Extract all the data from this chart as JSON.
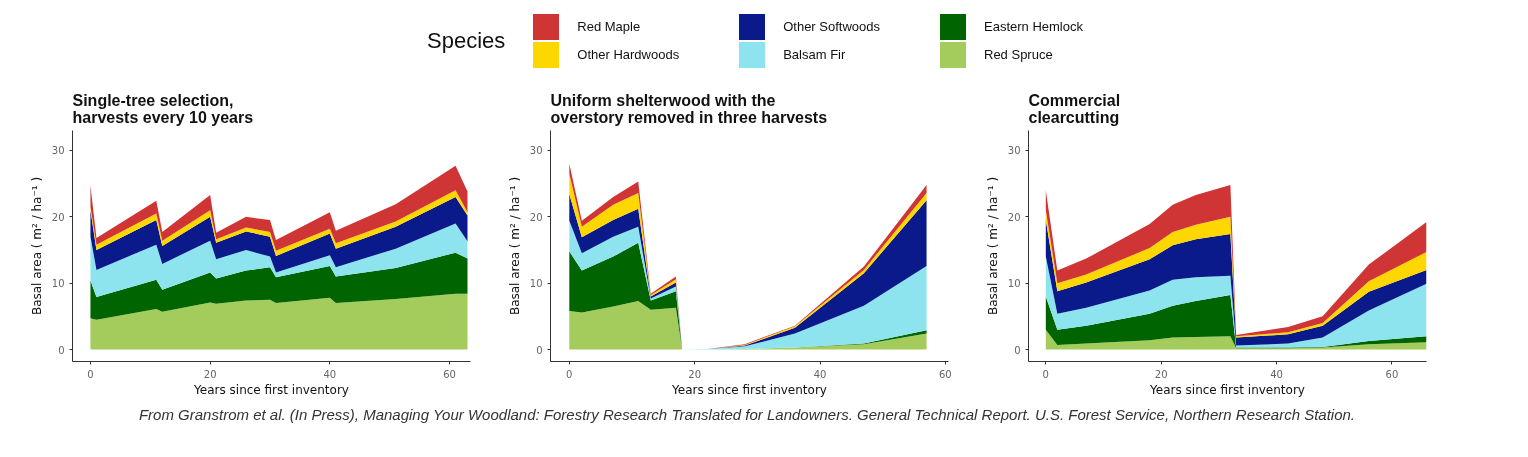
{
  "chart_data": [
    {
      "type": "area",
      "stacked": true,
      "title": "Single-tree selection,\nharvests every 10 years",
      "xlabel": "Years since first inventory",
      "ylabel": "Basal area ( m² / ha⁻¹ )",
      "legend": "top",
      "legend_title": "Species",
      "grid": false,
      "x": [
        0,
        1,
        11,
        12,
        20,
        21,
        26,
        30,
        31,
        40,
        41,
        51,
        61,
        63
      ],
      "xlim": [
        -3,
        63.5
      ],
      "xticks": [
        0,
        20,
        40,
        60
      ],
      "ylim": [
        -1.8,
        33
      ],
      "yticks": [
        0,
        10,
        20,
        30
      ],
      "series": [
        {
          "name": "Red Spruce",
          "color": "#a3cc5c",
          "values": [
            4.7,
            4.5,
            6.1,
            5.7,
            7.1,
            6.9,
            7.4,
            7.5,
            7.0,
            7.8,
            7.0,
            7.6,
            8.4,
            8.4
          ]
        },
        {
          "name": "Eastern Hemlock",
          "color": "#006400",
          "values": [
            5.7,
            3.4,
            4.4,
            3.3,
            4.5,
            3.8,
            4.5,
            4.9,
            3.9,
            4.8,
            4.0,
            4.7,
            6.2,
            5.3
          ]
        },
        {
          "name": "Balsam Fir",
          "color": "#8ee4ee",
          "values": [
            6.6,
            4.1,
            5.3,
            3.9,
            4.8,
            2.9,
            3.1,
            1.6,
            0.7,
            1.6,
            1.4,
            2.9,
            4.4,
            2.6
          ]
        },
        {
          "name": "Other Softwoods",
          "color": "#0a1a8a",
          "values": [
            4.0,
            3.0,
            3.7,
            2.7,
            3.6,
            2.5,
            2.8,
            3.0,
            2.5,
            3.3,
            2.8,
            3.3,
            4.0,
            3.9
          ]
        },
        {
          "name": "Other Hardwoods",
          "color": "#ffd700",
          "values": [
            0.5,
            0.8,
            1.0,
            0.8,
            1.0,
            0.5,
            0.6,
            0.7,
            0.8,
            0.7,
            0.8,
            0.8,
            1.0,
            0.5
          ]
        },
        {
          "name": "Red Maple",
          "color": "#d03535",
          "values": [
            3.2,
            1.0,
            1.9,
            1.3,
            2.3,
            1.0,
            1.6,
            1.8,
            1.6,
            2.5,
            1.9,
            2.6,
            3.7,
            3.1
          ]
        }
      ],
      "annotations": [
        "From Granstrom et al. (In Press), Managing Your Woodland: Forestry Research Translated for Landowners. General Technical Report. U.S. Forest Service, Northern Research Station."
      ]
    },
    {
      "type": "area",
      "stacked": true,
      "title": "Uniform shelterwood with the\noverstory removed in three harvests",
      "xlabel": "Years since first inventory",
      "ylabel": "Basal area ( m² / ha⁻¹ )",
      "grid": false,
      "x": [
        0,
        2,
        7,
        11,
        13,
        17,
        18,
        22,
        28,
        36,
        47,
        57
      ],
      "xlim": [
        -3,
        60.5
      ],
      "xticks": [
        0,
        20,
        40,
        60
      ],
      "ylim": [
        -1.8,
        33
      ],
      "yticks": [
        0,
        10,
        20,
        30
      ],
      "series": [
        {
          "color": "#a3cc5c",
          "values": [
            5.8,
            5.6,
            6.5,
            7.3,
            6.0,
            6.3,
            0,
            0,
            0.1,
            0.3,
            0.8,
            2.4
          ]
        },
        {
          "color": "#006400",
          "values": [
            9.0,
            6.3,
            7.5,
            8.8,
            1.4,
            2.5,
            0,
            0,
            0,
            0,
            0.1,
            0.5
          ]
        },
        {
          "color": "#8ee4ee",
          "values": [
            4.6,
            2.6,
            3.0,
            2.4,
            0.3,
            0.7,
            0,
            0.1,
            0.4,
            2.1,
            5.7,
            9.7
          ]
        },
        {
          "color": "#0a1a8a",
          "values": [
            4.0,
            2.4,
            2.5,
            2.7,
            0.3,
            0.6,
            0,
            0,
            0.1,
            0.9,
            4.9,
            9.9
          ]
        },
        {
          "color": "#ffd700",
          "values": [
            3.1,
            1.6,
            2.3,
            2.4,
            0.2,
            0.5,
            0,
            0,
            0.1,
            0.2,
            0.5,
            1.1
          ]
        },
        {
          "color": "#d03535",
          "values": [
            1.5,
            0.9,
            1.2,
            1.7,
            0.2,
            0.4,
            0,
            0,
            0.1,
            0.1,
            0.5,
            1.2
          ]
        }
      ]
    },
    {
      "type": "area",
      "stacked": true,
      "title": "Commercial\nclearcutting",
      "xlabel": "Years since first inventory",
      "ylabel": "Basal area ( m² / ha⁻¹ )",
      "grid": false,
      "x": [
        0,
        2,
        7,
        18,
        22,
        26,
        32,
        33,
        42,
        48,
        56,
        66
      ],
      "xlim": [
        -3,
        66
      ],
      "xticks": [
        0,
        20,
        40,
        60
      ],
      "ylim": [
        -1.8,
        33
      ],
      "yticks": [
        0,
        10,
        20,
        30
      ],
      "series": [
        {
          "color": "#a3cc5c",
          "values": [
            3.0,
            0.7,
            0.9,
            1.4,
            1.8,
            1.9,
            2.0,
            0.2,
            0.2,
            0.3,
            0.8,
            1.1
          ]
        },
        {
          "color": "#006400",
          "values": [
            5.0,
            2.3,
            2.7,
            4.0,
            4.8,
            5.4,
            6.2,
            0.1,
            0.1,
            0.1,
            0.5,
            0.9
          ]
        },
        {
          "color": "#8ee4ee",
          "values": [
            6.0,
            2.4,
            2.7,
            3.5,
            3.9,
            3.6,
            2.9,
            0.3,
            0.6,
            1.4,
            4.6,
            7.9
          ]
        },
        {
          "color": "#0a1a8a",
          "values": [
            5.5,
            3.4,
            3.8,
            4.7,
            5.2,
            5.7,
            6.3,
            1.2,
            1.4,
            1.8,
            2.8,
            2.1
          ]
        },
        {
          "color": "#ffd700",
          "values": [
            1.5,
            1.2,
            1.2,
            1.7,
            2.0,
            2.2,
            2.6,
            0.2,
            0.3,
            0.4,
            1.6,
            2.7
          ]
        },
        {
          "color": "#d03535",
          "values": [
            3.0,
            1.9,
            2.4,
            3.6,
            4.1,
            4.5,
            4.8,
            0.2,
            0.8,
            1.0,
            2.5,
            4.5
          ]
        }
      ]
    }
  ]
}
